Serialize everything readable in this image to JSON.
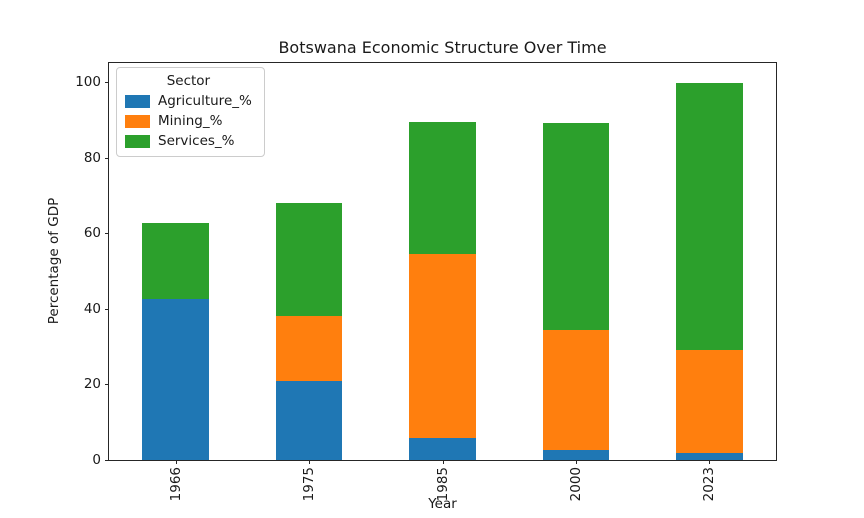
{
  "chart_data": {
    "type": "bar",
    "stacked": true,
    "title": "Botswana Economic Structure Over Time",
    "xlabel": "Year",
    "ylabel": "Percentage of GDP",
    "categories": [
      "1966",
      "1975",
      "1985",
      "2000",
      "2023"
    ],
    "series": [
      {
        "name": "Agriculture_%",
        "color": "#1f77b4",
        "values": [
          42.7,
          21.0,
          5.7,
          2.6,
          1.9
        ]
      },
      {
        "name": "Mining_%",
        "color": "#ff7f0e",
        "values": [
          0.0,
          17.1,
          48.8,
          31.7,
          27.3
        ]
      },
      {
        "name": "Services_%",
        "color": "#2ca02c",
        "values": [
          20.0,
          30.0,
          35.0,
          54.8,
          70.5
        ]
      }
    ],
    "stack_totals": [
      62.7,
      68.1,
      89.5,
      89.1,
      99.7
    ],
    "ylim": [
      0,
      105
    ],
    "yticks": [
      0,
      20,
      40,
      60,
      80,
      100
    ],
    "bar_width_fraction": 0.5,
    "grid": false,
    "legend": {
      "title": "Sector",
      "position": "upper-left"
    },
    "colors": {
      "axis": "#262626",
      "text": "#1a1a1a",
      "legend_border": "#cccccc",
      "background": "#ffffff"
    }
  }
}
